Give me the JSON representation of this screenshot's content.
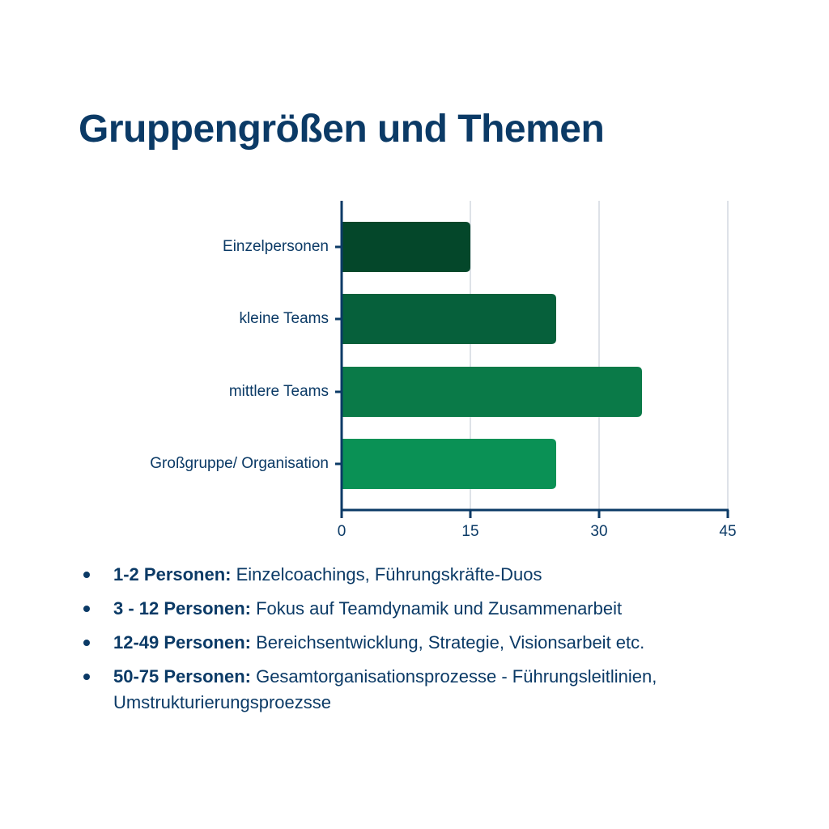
{
  "title": "Gruppengrößen und Themen",
  "colors": {
    "text": "#0b3a66",
    "axis": "#0b3a66",
    "grid": "#d3d8e0",
    "bars": [
      "#04472a",
      "#06603b",
      "#0a7a48",
      "#0a9155"
    ]
  },
  "chart_data": {
    "type": "bar",
    "orientation": "horizontal",
    "title": "Gruppengrößen und Themen",
    "categories": [
      "Einzelpersonen",
      "kleine Teams",
      "mittlere Teams",
      "Großgruppe/ Organisation"
    ],
    "values": [
      15,
      25,
      35,
      25
    ],
    "xlabel": "",
    "ylabel": "",
    "xlim": [
      0,
      45
    ],
    "xticks": [
      "0",
      "15",
      "30",
      "45"
    ],
    "grid": true,
    "legend": null
  },
  "bullets": [
    {
      "bold": "1-2 Personen:",
      "text": " Einzelcoachings, Führungskräfte-Duos"
    },
    {
      "bold": "3 - 12 Personen:",
      "text": " Fokus auf Teamdynamik und Zusammenarbeit"
    },
    {
      "bold": "12-49  Personen:",
      "text": " Bereichsentwicklung, Strategie, Visionsarbeit etc."
    },
    {
      "bold": "50-75 Personen:",
      "text": " Gesamtorganisationsprozesse - Führungsleitlinien, Umstrukturierungsproezsse"
    }
  ]
}
